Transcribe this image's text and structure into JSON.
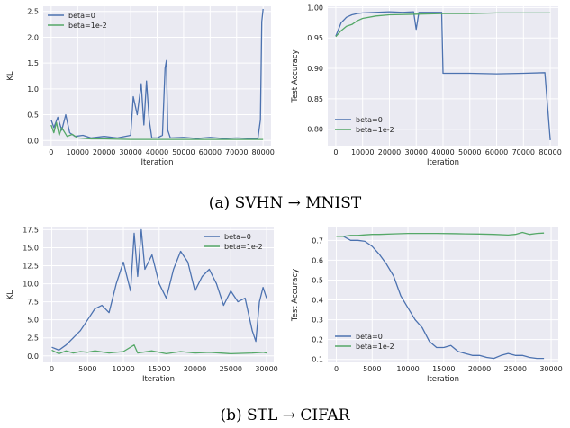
{
  "colors": {
    "beta0": "#4c72b0",
    "beta1e2": "#55a868",
    "plot_bg": "#eaeaf2",
    "grid": "#ffffff"
  },
  "captions": [
    "(a) SVHN → MNIST",
    "(b) STL → CIFAR"
  ],
  "chart_data": [
    {
      "type": "line",
      "xlabel": "Iteration",
      "ylabel": "KL",
      "xlim": [
        -3000,
        83000
      ],
      "ylim": [
        -0.1,
        2.6
      ],
      "xticks": [
        0,
        10000,
        20000,
        30000,
        40000,
        50000,
        60000,
        70000,
        80000
      ],
      "yticks": [
        0.0,
        0.5,
        1.0,
        1.5,
        2.0,
        2.5
      ],
      "ytick_labels": [
        "0.0",
        "0.5",
        "1.0",
        "1.5",
        "2.0",
        "2.5"
      ],
      "legend": "top-left",
      "grid": true,
      "series": [
        {
          "name": "beta=0",
          "color": "#4c72b0",
          "x": [
            0,
            1000,
            2500,
            4000,
            5500,
            7000,
            9000,
            12000,
            15000,
            20000,
            25000,
            30000,
            31000,
            32500,
            34000,
            35000,
            36000,
            37000,
            38000,
            40000,
            42000,
            43000,
            43500,
            44000,
            45000,
            50000,
            55000,
            60000,
            65000,
            70000,
            75000,
            78000,
            79000,
            79500,
            80000
          ],
          "y": [
            0.4,
            0.25,
            0.45,
            0.2,
            0.5,
            0.15,
            0.08,
            0.1,
            0.05,
            0.08,
            0.05,
            0.1,
            0.85,
            0.5,
            1.1,
            0.3,
            1.15,
            0.4,
            0.05,
            0.05,
            0.1,
            1.4,
            1.55,
            0.2,
            0.05,
            0.06,
            0.04,
            0.06,
            0.04,
            0.05,
            0.04,
            0.03,
            0.4,
            2.3,
            2.55
          ]
        },
        {
          "name": "beta=1e-2",
          "color": "#55a868",
          "x": [
            0,
            1000,
            2000,
            3000,
            4000,
            6000,
            8000,
            10000,
            15000,
            20000,
            30000,
            40000,
            50000,
            60000,
            70000,
            80000
          ],
          "y": [
            0.3,
            0.15,
            0.35,
            0.1,
            0.25,
            0.08,
            0.12,
            0.05,
            0.03,
            0.03,
            0.02,
            0.02,
            0.02,
            0.02,
            0.02,
            0.02
          ]
        }
      ]
    },
    {
      "type": "line",
      "xlabel": "Iteration",
      "ylabel": "Test Accuracy",
      "xlim": [
        -3000,
        83000
      ],
      "ylim": [
        0.773,
        1.002
      ],
      "xticks": [
        0,
        10000,
        20000,
        30000,
        40000,
        50000,
        60000,
        70000,
        80000
      ],
      "yticks": [
        0.8,
        0.85,
        0.9,
        0.95,
        1.0
      ],
      "ytick_labels": [
        "0.80",
        "0.85",
        "0.90",
        "0.95",
        "1.00"
      ],
      "legend": "bottom-left",
      "grid": true,
      "series": [
        {
          "name": "beta=0",
          "color": "#4c72b0",
          "x": [
            0,
            2000,
            4000,
            6000,
            8000,
            10000,
            15000,
            20000,
            25000,
            29000,
            30000,
            31000,
            35000,
            39500,
            40000,
            50000,
            60000,
            70000,
            78000,
            80000
          ],
          "y": [
            0.953,
            0.975,
            0.984,
            0.988,
            0.99,
            0.991,
            0.992,
            0.993,
            0.992,
            0.993,
            0.964,
            0.992,
            0.992,
            0.992,
            0.892,
            0.892,
            0.891,
            0.892,
            0.893,
            0.782
          ]
        },
        {
          "name": "beta=1e-2",
          "color": "#55a868",
          "x": [
            0,
            2000,
            4000,
            6000,
            8000,
            10000,
            15000,
            20000,
            30000,
            40000,
            50000,
            60000,
            70000,
            80000
          ],
          "y": [
            0.952,
            0.962,
            0.969,
            0.972,
            0.978,
            0.982,
            0.986,
            0.988,
            0.989,
            0.99,
            0.99,
            0.991,
            0.991,
            0.991
          ]
        }
      ]
    },
    {
      "type": "line",
      "xlabel": "Iteration",
      "ylabel": "KL",
      "xlim": [
        -1200,
        31000
      ],
      "ylim": [
        -0.9,
        17.8
      ],
      "xticks": [
        0,
        5000,
        10000,
        15000,
        20000,
        25000,
        30000
      ],
      "yticks": [
        0,
        2.5,
        5,
        7.5,
        10,
        12.5,
        15,
        17.5
      ],
      "ytick_labels": [
        "0.0",
        "2.5",
        "5.0",
        "7.5",
        "10.0",
        "12.5",
        "15.0",
        "17.5"
      ],
      "legend": "top-right",
      "grid": true,
      "series": [
        {
          "name": "beta=0",
          "color": "#4c72b0",
          "x": [
            0,
            1000,
            2000,
            3000,
            4000,
            5000,
            6000,
            7000,
            8000,
            9000,
            10000,
            11000,
            11500,
            12000,
            12500,
            13000,
            14000,
            15000,
            16000,
            17000,
            18000,
            19000,
            20000,
            21000,
            22000,
            23000,
            24000,
            25000,
            26000,
            27000,
            28000,
            28500,
            29000,
            29500,
            30000
          ],
          "y": [
            1.2,
            0.8,
            1.5,
            2.5,
            3.5,
            5.0,
            6.5,
            7.0,
            6.0,
            10.0,
            13.0,
            9.0,
            17.0,
            11.0,
            17.5,
            12.0,
            14.0,
            10.0,
            8.0,
            12.0,
            14.5,
            13.0,
            9.0,
            11.0,
            12.0,
            10.0,
            7.0,
            9.0,
            7.5,
            8.0,
            3.5,
            2.0,
            7.5,
            9.5,
            8.0
          ]
        },
        {
          "name": "beta=1e-2",
          "color": "#55a868",
          "x": [
            0,
            1000,
            2000,
            3000,
            4000,
            5000,
            6000,
            8000,
            10000,
            11500,
            12000,
            14000,
            16000,
            18000,
            20000,
            22000,
            25000,
            28000,
            29500,
            30000
          ],
          "y": [
            0.8,
            0.3,
            0.7,
            0.4,
            0.6,
            0.5,
            0.7,
            0.4,
            0.6,
            1.5,
            0.4,
            0.7,
            0.3,
            0.6,
            0.4,
            0.5,
            0.3,
            0.4,
            0.5,
            0.4
          ]
        }
      ]
    },
    {
      "type": "line",
      "xlabel": "Iteration",
      "ylabel": "Test Accuracy",
      "xlim": [
        -1200,
        31000
      ],
      "ylim": [
        0.085,
        0.765
      ],
      "xticks": [
        0,
        5000,
        10000,
        15000,
        20000,
        25000,
        30000
      ],
      "yticks": [
        0.1,
        0.2,
        0.3,
        0.4,
        0.5,
        0.6,
        0.7
      ],
      "ytick_labels": [
        "0.1",
        "0.2",
        "0.3",
        "0.4",
        "0.5",
        "0.6",
        "0.7"
      ],
      "legend": "bottom-left",
      "grid": true,
      "series": [
        {
          "name": "beta=0",
          "color": "#4c72b0",
          "x": [
            0,
            1000,
            2000,
            3000,
            4000,
            5000,
            6000,
            7000,
            8000,
            9000,
            10000,
            11000,
            12000,
            13000,
            14000,
            15000,
            16000,
            17000,
            18000,
            19000,
            20000,
            21000,
            22000,
            23000,
            24000,
            25000,
            26000,
            27000,
            28000,
            29000
          ],
          "y": [
            0.72,
            0.72,
            0.7,
            0.7,
            0.695,
            0.67,
            0.63,
            0.58,
            0.52,
            0.42,
            0.36,
            0.3,
            0.26,
            0.19,
            0.16,
            0.16,
            0.17,
            0.14,
            0.13,
            0.12,
            0.12,
            0.11,
            0.105,
            0.12,
            0.13,
            0.12,
            0.12,
            0.11,
            0.105,
            0.105
          ]
        },
        {
          "name": "beta=1e-2",
          "color": "#55a868",
          "x": [
            0,
            1000,
            2000,
            3000,
            4000,
            5000,
            6000,
            8000,
            10000,
            12000,
            14000,
            16000,
            18000,
            20000,
            22000,
            24000,
            25000,
            26000,
            27000,
            28000,
            29000
          ],
          "y": [
            0.72,
            0.72,
            0.725,
            0.725,
            0.728,
            0.73,
            0.73,
            0.733,
            0.735,
            0.735,
            0.735,
            0.734,
            0.733,
            0.732,
            0.73,
            0.727,
            0.73,
            0.74,
            0.73,
            0.735,
            0.737
          ]
        }
      ]
    }
  ]
}
